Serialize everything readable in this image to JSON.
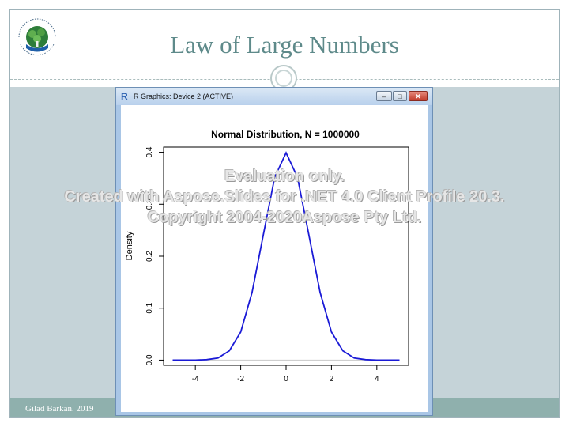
{
  "slide": {
    "title": "Law of Large Numbers",
    "footer": "Gilad Barkan. 2019",
    "logo_text": "Ruppin Academic Center"
  },
  "window": {
    "title": "R Graphics: Device 2 (ACTIVE)",
    "buttons": {
      "minimize": "–",
      "maximize": "□",
      "close": "✕"
    }
  },
  "chart_data": {
    "type": "line",
    "title": "Normal Distribution, N = 1000000",
    "xlabel": "",
    "ylabel": "Density",
    "xlim": [
      -5.4,
      5.4
    ],
    "ylim": [
      -0.01,
      0.41
    ],
    "x_ticks": [
      -4,
      -2,
      0,
      2,
      4
    ],
    "y_ticks": [
      0.0,
      0.1,
      0.2,
      0.3,
      0.4
    ],
    "x_tick_labels": [
      "-4",
      "-2",
      "0",
      "2",
      "4"
    ],
    "y_tick_labels": [
      "0.0",
      "0.1",
      "0.2",
      "0.3",
      "0.4"
    ],
    "grid": false,
    "line_color": "#1a1ad6",
    "x": [
      -5.0,
      -4.5,
      -4.0,
      -3.5,
      -3.0,
      -2.5,
      -2.0,
      -1.5,
      -1.0,
      -0.5,
      0.0,
      0.5,
      1.0,
      1.5,
      2.0,
      2.5,
      3.0,
      3.5,
      4.0,
      4.5,
      5.0
    ],
    "y": [
      0.0,
      0.0,
      0.0,
      0.001,
      0.004,
      0.018,
      0.054,
      0.13,
      0.242,
      0.352,
      0.399,
      0.352,
      0.242,
      0.13,
      0.054,
      0.018,
      0.004,
      0.001,
      0.0,
      0.0,
      0.0
    ]
  },
  "watermark": {
    "line1": "Evaluation only.",
    "line2": "Created with Aspose.Slides for .NET 4.0 Client Profile 20.3.",
    "line3": "Copyright 2004-2020Aspose Pty Ltd."
  }
}
